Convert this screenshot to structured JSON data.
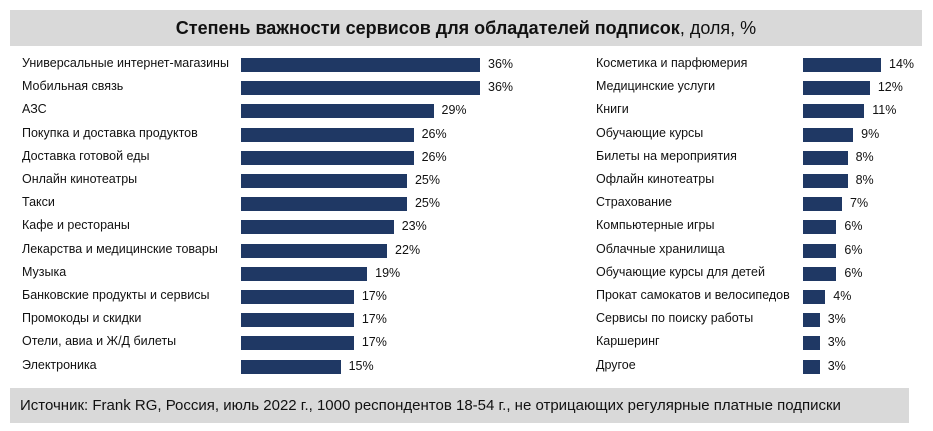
{
  "title": {
    "bold": "Степень важности сервисов для обладателей подписок",
    "rest": ", доля, %"
  },
  "source": "Источник: Frank RG, Россия, июль 2022 г., 1000 респондентов 18-54 г., не отрицающих регулярные платные подписки",
  "colors": {
    "bar": "#1f3864",
    "header_bg": "#d9d9d9"
  },
  "chart_data": [
    {
      "type": "bar",
      "orientation": "horizontal",
      "title": "Степень важности сервисов для обладателей подписок, доля, %",
      "unit": "%",
      "categories": [
        "Универсальные интернет-магазины",
        "Мобильная связь",
        "АЗС",
        "Покупка и доставка продуктов",
        "Доставка готовой еды",
        "Онлайн кинотеатры",
        "Такси",
        "Кафе и рестораны",
        "Лекарства и медицинские товары",
        "Музыка",
        "Банковские продукты и сервисы",
        "Промокоды и скидки",
        "Отели, авиа и Ж/Д билеты",
        "Электроника"
      ],
      "values": [
        36,
        36,
        29,
        26,
        26,
        25,
        25,
        23,
        22,
        19,
        17,
        17,
        17,
        15
      ],
      "labels": [
        "36%",
        "36%",
        "29%",
        "26%",
        "26%",
        "25%",
        "25%",
        "23%",
        "22%",
        "19%",
        "17%",
        "17%",
        "17%",
        "15%"
      ],
      "xlim": [
        0,
        36
      ]
    },
    {
      "type": "bar",
      "orientation": "horizontal",
      "unit": "%",
      "categories": [
        "Косметика и парфюмерия",
        "Медицинские услуги",
        "Книги",
        "Обучающие курсы",
        "Билеты на мероприятия",
        "Офлайн кинотеатры",
        "Страхование",
        "Компьютерные игры",
        "Облачные хранилища",
        "Обучающие курсы для детей",
        "Прокат самокатов и велосипедов",
        "Сервисы по поиску работы",
        "Каршеринг",
        "Другое"
      ],
      "values": [
        14,
        12,
        11,
        9,
        8,
        8,
        7,
        6,
        6,
        6,
        4,
        3,
        3,
        3
      ],
      "labels": [
        "14%",
        "12%",
        "11%",
        "9%",
        "8%",
        "8%",
        "7%",
        "6%",
        "6%",
        "6%",
        "4%",
        "3%",
        "3%",
        "3%"
      ],
      "xlim": [
        0,
        14
      ]
    }
  ]
}
